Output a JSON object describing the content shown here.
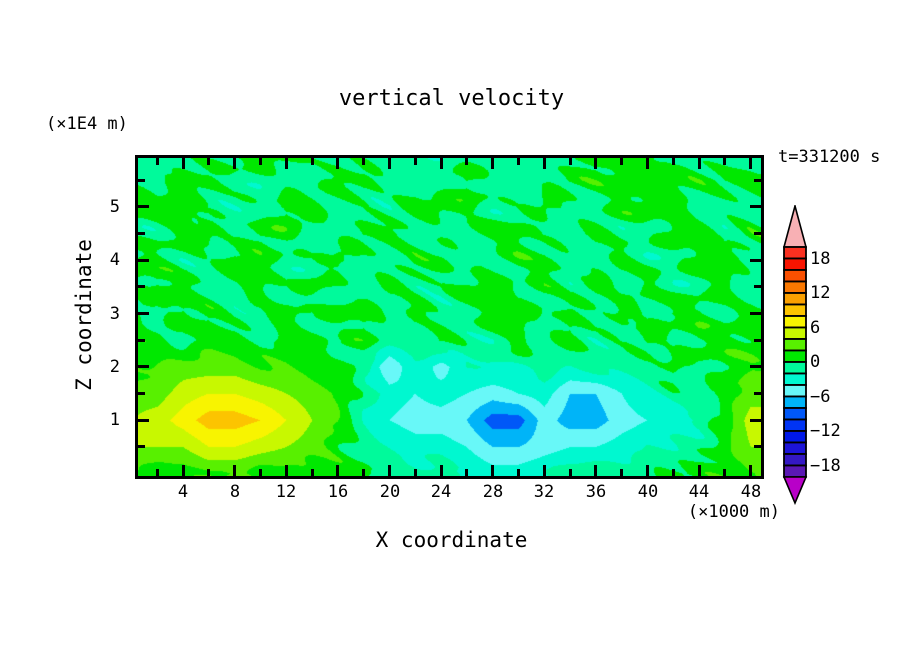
{
  "chart_data": {
    "type": "heatmap",
    "subtype": "filled-contour",
    "title": "vertical velocity",
    "xlabel": "X coordinate",
    "xunits": "(×1000 m)",
    "ylabel": "Z coordinate",
    "yunits": "(×1E4 m)",
    "annotation": "t=331200 s",
    "xlim": [
      0,
      49
    ],
    "zlim": [
      0,
      6
    ],
    "grid": false,
    "x": [
      0,
      2,
      4,
      6,
      8,
      10,
      12,
      14,
      16,
      18,
      20,
      22,
      24,
      26,
      28,
      30,
      32,
      34,
      36,
      38,
      40,
      42,
      44,
      46,
      48
    ],
    "z_rows_top_to_bottom": [
      6.0,
      5.5,
      5.0,
      4.5,
      4.0,
      3.5,
      3.0,
      2.5,
      2.0,
      1.5,
      1.0,
      0.5,
      0.0
    ],
    "values": [
      [
        -1,
        -1,
        -1,
        -1,
        1,
        1,
        1,
        -1,
        -1,
        -1,
        -1,
        -1,
        -1,
        -1,
        -1,
        -1,
        -1,
        -1,
        1,
        1,
        1,
        -1,
        -1,
        -1,
        -1
      ],
      [
        -1,
        -1,
        1,
        1,
        -1,
        -1,
        -1,
        -1,
        1,
        1,
        -1,
        -1,
        -1,
        1,
        -1,
        -1,
        -1,
        1,
        1,
        1,
        1,
        1,
        1,
        1,
        1
      ],
      [
        1,
        1,
        1,
        -1,
        -1,
        -1,
        1,
        1,
        -1,
        -1,
        -1,
        1,
        1,
        1,
        -1,
        -1,
        1,
        -1,
        -1,
        1,
        1,
        1,
        -1,
        -1,
        -1
      ],
      [
        -1,
        -1,
        1,
        1,
        -1,
        1,
        1,
        -1,
        -1,
        1,
        1,
        -1,
        -1,
        -1,
        1,
        1,
        -1,
        -1,
        1,
        -1,
        -1,
        1,
        1,
        -1,
        1
      ],
      [
        1,
        1,
        -1,
        -1,
        1,
        1,
        -1,
        -1,
        1,
        -1,
        -1,
        1,
        1,
        -1,
        -1,
        1,
        1,
        -1,
        -1,
        1,
        -1,
        -1,
        1,
        1,
        -1
      ],
      [
        -1,
        1,
        1,
        -1,
        -1,
        1,
        -1,
        1,
        -1,
        -1,
        1,
        -1,
        -1,
        1,
        1,
        -1,
        1,
        -1,
        1,
        -1,
        1,
        -1,
        -1,
        1,
        -1
      ],
      [
        1,
        -1,
        1,
        1,
        -1,
        -1,
        1,
        -1,
        1,
        1,
        -1,
        1,
        -1,
        -1,
        1,
        1,
        -1,
        1,
        -1,
        1,
        -1,
        1,
        1,
        -1,
        1
      ],
      [
        1,
        1,
        -1,
        1,
        1,
        -1,
        1,
        1,
        -1,
        1,
        -1,
        -1,
        1,
        -1,
        -1,
        1,
        -1,
        1,
        -1,
        -1,
        1,
        -1,
        1,
        1,
        1
      ],
      [
        1,
        2,
        3,
        3,
        3,
        2,
        2,
        1,
        1,
        -1,
        -6,
        -2,
        -5,
        -2,
        -2,
        -2,
        -1,
        -2,
        -1,
        -1,
        -1,
        1,
        -1,
        1,
        2
      ],
      [
        3,
        3,
        5,
        6,
        6,
        5,
        4,
        3,
        2,
        -1,
        -3,
        -4,
        -3,
        -4,
        -5,
        -4,
        -3,
        -6,
        -6,
        -4,
        -2,
        -1,
        -1,
        1,
        3
      ],
      [
        4,
        5,
        7,
        9,
        9,
        8,
        6,
        4,
        2,
        -2,
        -4,
        -5,
        -5,
        -6,
        -9,
        -9,
        -5,
        -7,
        -7,
        -5,
        -4,
        -3,
        -2,
        1,
        5
      ],
      [
        4,
        4,
        4,
        6,
        6,
        5,
        4,
        3,
        1,
        -1,
        -2,
        -3,
        -3,
        -4,
        -6,
        -6,
        -5,
        -4,
        -4,
        -3,
        -2,
        -2,
        -1,
        1,
        4
      ],
      [
        1,
        1,
        1,
        2,
        2,
        1,
        1,
        1,
        1,
        1,
        -1,
        -1,
        -1,
        -2,
        -3,
        -3,
        -2,
        -1,
        -1,
        -1,
        -1,
        1,
        1,
        1,
        2
      ]
    ],
    "contour_interval": 2,
    "level_min": -20,
    "level_max": 20,
    "x_major_ticks": [
      4,
      8,
      12,
      16,
      20,
      24,
      28,
      32,
      36,
      40,
      44,
      48
    ],
    "x_minor_ticks": [
      2,
      6,
      10,
      14,
      18,
      22,
      26,
      30,
      34,
      38,
      42,
      46
    ],
    "z_major_ticks": [
      1,
      2,
      3,
      4,
      5
    ],
    "z_minor_ticks": [
      0.5,
      1.5,
      2.5,
      3.5,
      4.5,
      5.5
    ],
    "colorbar": {
      "labels": [
        18,
        12,
        6,
        0,
        -6,
        -12,
        -18
      ],
      "colors_neg_to_pos": [
        "#5a18b4",
        "#3418c4",
        "#1c14d8",
        "#0018e8",
        "#0034f4",
        "#0058f8",
        "#00b4f8",
        "#68f8f8",
        "#00f8d0",
        "#00fa9b",
        "#00e800",
        "#58f000",
        "#c8f800",
        "#f8f400",
        "#fcc400",
        "#faa000",
        "#fa7800",
        "#fa5000",
        "#f81400",
        "#fa3020"
      ],
      "over_color": "#f8b0b4",
      "under_color": "#b800c8",
      "outline_color": "#000000"
    }
  }
}
